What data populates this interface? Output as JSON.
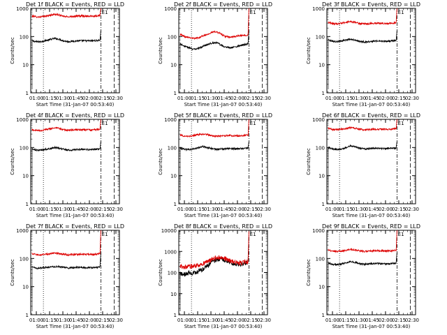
{
  "chart_data": [
    {
      "type": "line",
      "title": "Det 1f BLACK = Events, RED = LLD",
      "xlabel": "Start Time (31-Jan-07 00:53:40)",
      "ylabel": "Counts/sec",
      "yscale": "log",
      "ylim": [
        1,
        1000
      ],
      "xlim": [
        "00:53:40",
        "02:34:00"
      ],
      "x_ticks": [
        "01:00",
        "01:15",
        "01:30",
        "01:45",
        "02:00",
        "02:15",
        "02:30"
      ],
      "y_ticks": [
        "1",
        "10",
        "100",
        "1000"
      ],
      "marker_label": "E1",
      "series": [
        {
          "color": "#000000",
          "values": [
            70,
            65,
            66,
            72,
            78,
            86,
            80,
            70,
            66,
            68,
            70,
            71,
            70,
            70,
            72,
            74,
            160
          ]
        },
        {
          "color": "#dd0000",
          "values": [
            540,
            500,
            500,
            530,
            570,
            620,
            580,
            520,
            505,
            520,
            535,
            540,
            535,
            530,
            540,
            560,
            1000
          ]
        }
      ]
    },
    {
      "type": "line",
      "title": "Det 2f BLACK = Events, RED = LLD",
      "xlabel": "Start Time (31-Jan-07 00:53:40)",
      "ylabel": "Counts/sec",
      "yscale": "log",
      "ylim": [
        1,
        1000
      ],
      "xlim": [
        "00:53:40",
        "02:34:00"
      ],
      "x_ticks": [
        "01:00",
        "01:15",
        "01:30",
        "01:45",
        "02:00",
        "02:15",
        "02:30"
      ],
      "y_ticks": [
        "1",
        "10",
        "100",
        "1000"
      ],
      "marker_label": "E1",
      "series": [
        {
          "color": "#000000",
          "values": [
            55,
            45,
            40,
            35,
            38,
            44,
            52,
            58,
            62,
            50,
            42,
            40,
            42,
            46,
            50,
            55,
            160
          ]
        },
        {
          "color": "#dd0000",
          "values": [
            120,
            100,
            95,
            85,
            90,
            105,
            120,
            140,
            150,
            125,
            100,
            95,
            100,
            105,
            110,
            115,
            1000
          ]
        }
      ]
    },
    {
      "type": "line",
      "title": "Det 3f BLACK = Events, RED = LLD",
      "xlabel": "Start Time (31-Jan-07 00:53:40)",
      "ylabel": "Counts/sec",
      "yscale": "log",
      "ylim": [
        1,
        1000
      ],
      "xlim": [
        "00:53:40",
        "02:34:00"
      ],
      "x_ticks": [
        "01:00",
        "01:15",
        "01:30",
        "01:45",
        "02:00",
        "02:15",
        "02:30"
      ],
      "y_ticks": [
        "1",
        "10",
        "100",
        "1000"
      ],
      "marker_label": "E1",
      "series": [
        {
          "color": "#000000",
          "values": [
            75,
            68,
            66,
            70,
            76,
            80,
            74,
            68,
            64,
            66,
            68,
            69,
            68,
            68,
            70,
            72,
            160
          ]
        },
        {
          "color": "#dd0000",
          "values": [
            320,
            290,
            280,
            300,
            320,
            340,
            320,
            290,
            275,
            285,
            295,
            300,
            295,
            290,
            300,
            310,
            1000
          ]
        }
      ]
    },
    {
      "type": "line",
      "title": "Det 4f BLACK = Events, RED = LLD",
      "xlabel": "Start Time (31-Jan-07 00:53:40)",
      "ylabel": "Counts/sec",
      "yscale": "log",
      "ylim": [
        1,
        1000
      ],
      "xlim": [
        "00:53:40",
        "02:34:00"
      ],
      "x_ticks": [
        "01:00",
        "01:15",
        "01:30",
        "01:45",
        "02:00",
        "02:15",
        "02:30"
      ],
      "y_ticks": [
        "1",
        "10",
        "100",
        "1000"
      ],
      "marker_label": "E1",
      "series": [
        {
          "color": "#000000",
          "values": [
            90,
            80,
            80,
            86,
            92,
            100,
            94,
            86,
            80,
            82,
            84,
            86,
            84,
            84,
            86,
            88,
            160
          ]
        },
        {
          "color": "#dd0000",
          "values": [
            430,
            400,
            400,
            430,
            460,
            500,
            470,
            430,
            410,
            420,
            430,
            430,
            425,
            420,
            430,
            450,
            1000
          ]
        }
      ]
    },
    {
      "type": "line",
      "title": "Det 5f BLACK = Events, RED = LLD",
      "xlabel": "Start Time (31-Jan-07 00:53:40)",
      "ylabel": "Counts/sec",
      "yscale": "log",
      "ylim": [
        1,
        1000
      ],
      "xlim": [
        "00:53:40",
        "02:34:00"
      ],
      "x_ticks": [
        "01:00",
        "01:15",
        "01:30",
        "01:45",
        "02:00",
        "02:15",
        "02:30"
      ],
      "y_ticks": [
        "1",
        "10",
        "100",
        "1000"
      ],
      "marker_label": "E1",
      "series": [
        {
          "color": "#000000",
          "values": [
            95,
            85,
            84,
            90,
            98,
            108,
            100,
            92,
            86,
            88,
            90,
            92,
            90,
            90,
            92,
            94,
            160
          ]
        },
        {
          "color": "#dd0000",
          "values": [
            280,
            255,
            250,
            265,
            285,
            300,
            285,
            265,
            250,
            255,
            262,
            266,
            262,
            260,
            265,
            275,
            1000
          ]
        }
      ]
    },
    {
      "type": "line",
      "title": "Det 6f BLACK = Events, RED = LLD",
      "xlabel": "Start Time (31-Jan-07 00:53:40)",
      "ylabel": "Counts/sec",
      "yscale": "log",
      "ylim": [
        1,
        1000
      ],
      "xlim": [
        "00:53:40",
        "02:34:00"
      ],
      "x_ticks": [
        "01:00",
        "01:15",
        "01:30",
        "01:45",
        "02:00",
        "02:15",
        "02:30"
      ],
      "y_ticks": [
        "1",
        "10",
        "100",
        "1000"
      ],
      "marker_label": "E1",
      "series": [
        {
          "color": "#000000",
          "values": [
            100,
            88,
            86,
            90,
            100,
            115,
            105,
            94,
            88,
            90,
            92,
            94,
            92,
            92,
            94,
            96,
            160
          ]
        },
        {
          "color": "#dd0000",
          "values": [
            480,
            440,
            430,
            450,
            480,
            510,
            480,
            445,
            425,
            435,
            445,
            450,
            445,
            440,
            450,
            470,
            1000
          ]
        }
      ]
    },
    {
      "type": "line",
      "title": "Det 7f BLACK = Events, RED = LLD",
      "xlabel": "Start Time (31-Jan-07 00:53:40)",
      "ylabel": "Counts/sec",
      "yscale": "log",
      "ylim": [
        1,
        1000
      ],
      "xlim": [
        "00:53:40",
        "02:34:00"
      ],
      "x_ticks": [
        "01:00",
        "01:15",
        "01:30",
        "01:45",
        "02:00",
        "02:15",
        "02:30"
      ],
      "y_ticks": [
        "1",
        "10",
        "100",
        "1000"
      ],
      "marker_label": "E1",
      "series": [
        {
          "color": "#000000",
          "values": [
            50,
            45,
            46,
            48,
            50,
            52,
            50,
            48,
            46,
            47,
            48,
            48,
            47,
            47,
            48,
            50,
            160
          ]
        },
        {
          "color": "#dd0000",
          "values": [
            150,
            135,
            135,
            140,
            148,
            155,
            148,
            140,
            135,
            138,
            140,
            142,
            140,
            140,
            142,
            148,
            1000
          ]
        }
      ]
    },
    {
      "type": "line",
      "title": "Det 8f BLACK = Events, RED = LLD",
      "xlabel": "Start Time (31-Jan-07 00:53:40)",
      "ylabel": "Counts/sec",
      "yscale": "log",
      "ylim": [
        1,
        10000
      ],
      "xlim": [
        "00:53:40",
        "02:34:00"
      ],
      "x_ticks": [
        "01:00",
        "01:15",
        "01:30",
        "01:45",
        "02:00",
        "02:15",
        "02:30"
      ],
      "y_ticks": [
        "1",
        "10",
        "100",
        "1000",
        "10000"
      ],
      "marker_label": "E1",
      "series": [
        {
          "color": "#000000",
          "values": [
            90,
            80,
            100,
            95,
            110,
            140,
            200,
            300,
            400,
            450,
            380,
            300,
            260,
            240,
            260,
            300,
            5000
          ]
        },
        {
          "color": "#dd0000",
          "values": [
            200,
            180,
            190,
            200,
            220,
            260,
            320,
            420,
            500,
            520,
            450,
            360,
            300,
            280,
            300,
            340,
            9000
          ]
        }
      ]
    },
    {
      "type": "line",
      "title": "Det 9f BLACK = Events, RED = LLD",
      "xlabel": "Start Time (31-Jan-07 00:53:40)",
      "ylabel": "Counts/sec",
      "yscale": "log",
      "ylim": [
        1,
        1000
      ],
      "xlim": [
        "00:53:40",
        "02:34:00"
      ],
      "x_ticks": [
        "01:00",
        "01:15",
        "01:30",
        "01:45",
        "02:00",
        "02:15",
        "02:30"
      ],
      "y_ticks": [
        "1",
        "10",
        "100",
        "1000"
      ],
      "marker_label": "E1",
      "series": [
        {
          "color": "#000000",
          "values": [
            70,
            62,
            60,
            64,
            70,
            78,
            72,
            66,
            62,
            64,
            66,
            66,
            65,
            65,
            66,
            68,
            160
          ]
        },
        {
          "color": "#dd0000",
          "values": [
            200,
            180,
            178,
            185,
            195,
            210,
            198,
            185,
            178,
            182,
            186,
            188,
            186,
            185,
            188,
            195,
            1000
          ]
        }
      ]
    }
  ]
}
